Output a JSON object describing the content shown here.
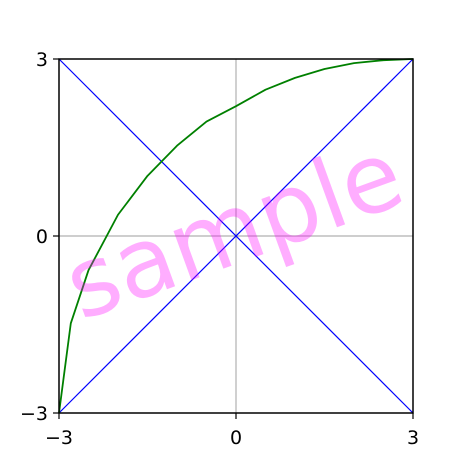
{
  "chart_data": {
    "type": "line",
    "title": "",
    "xlabel": "",
    "ylabel": "",
    "xlim": [
      -3,
      3
    ],
    "ylim": [
      -3,
      3
    ],
    "x_ticks": [
      -3,
      0,
      3
    ],
    "y_ticks": [
      -3,
      0,
      3
    ],
    "x_tick_labels": [
      "−3",
      "0",
      "3"
    ],
    "y_tick_labels": [
      "−3",
      "0",
      "3"
    ],
    "grid": "center lines only",
    "legend": "none",
    "series": [
      {
        "color": "#0000ff",
        "points": [
          [
            -3,
            -3
          ],
          [
            3,
            3
          ]
        ]
      },
      {
        "color": "#0000ff",
        "points": [
          [
            -3,
            3
          ],
          [
            3,
            -3
          ]
        ]
      },
      {
        "color": "#008000",
        "points": [
          [
            -3.0,
            -3.0
          ],
          [
            -2.8,
            -1.48
          ],
          [
            -2.5,
            -0.58
          ],
          [
            -2.0,
            0.36
          ],
          [
            -1.5,
            1.02
          ],
          [
            -1.0,
            1.53
          ],
          [
            -0.5,
            1.94
          ],
          [
            0.0,
            2.2
          ],
          [
            0.5,
            2.48
          ],
          [
            1.0,
            2.68
          ],
          [
            1.5,
            2.83
          ],
          [
            2.0,
            2.93
          ],
          [
            2.5,
            2.98
          ],
          [
            3.0,
            3.0
          ]
        ]
      }
    ],
    "watermark": {
      "text": "sample",
      "color": "#ff00ff"
    }
  }
}
